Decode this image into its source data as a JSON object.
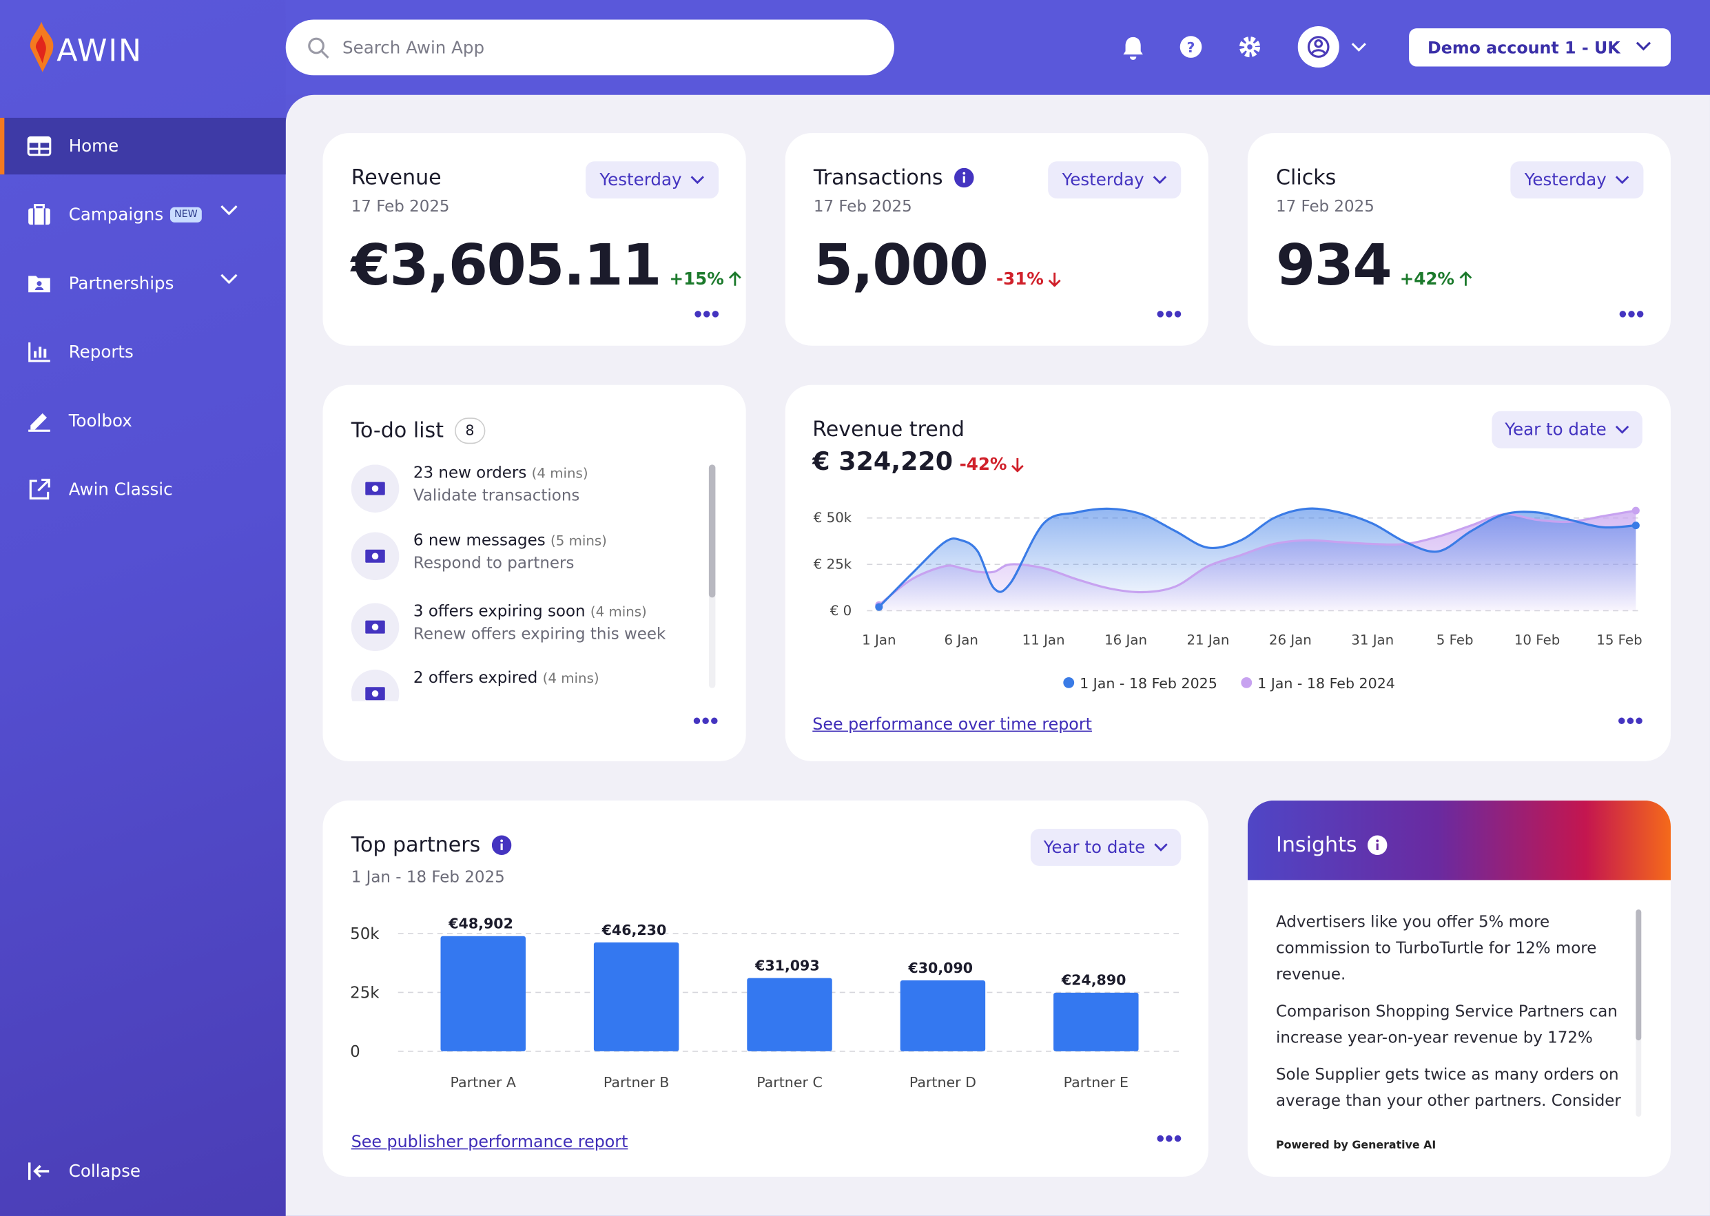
{
  "header": {
    "logo": "AWIN",
    "search_placeholder": "Search Awin App",
    "account": "Demo account 1 - UK"
  },
  "sidebar": {
    "items": [
      {
        "label": "Home"
      },
      {
        "label": "Campaigns",
        "badge": "NEW"
      },
      {
        "label": "Partnerships"
      },
      {
        "label": "Reports"
      },
      {
        "label": "Toolbox"
      },
      {
        "label": "Awin Classic"
      }
    ],
    "collapse": "Collapse"
  },
  "kpis": [
    {
      "title": "Revenue",
      "date": "17 Feb 2025",
      "period": "Yesterday",
      "value": "€3,605.11",
      "change": "+15%"
    },
    {
      "title": "Transactions",
      "date": "17 Feb 2025",
      "period": "Yesterday",
      "value": "5,000",
      "change": "-31%"
    },
    {
      "title": "Clicks",
      "date": "17 Feb 2025",
      "period": "Yesterday",
      "value": "934",
      "change": "+42%"
    }
  ],
  "todo": {
    "title": "To-do list",
    "count": 8,
    "items": [
      {
        "title": "23 new orders",
        "time": "(4 mins)",
        "subtitle": "Validate transactions"
      },
      {
        "title": "6 new messages",
        "time": "(5 mins)",
        "subtitle": "Respond to partners"
      },
      {
        "title": "3 offers expiring soon",
        "time": "(4 mins)",
        "subtitle": "Renew offers expiring this week"
      },
      {
        "title": "2 offers expired",
        "time": "(4 mins)"
      }
    ]
  },
  "revenue_trend": {
    "title": "Revenue trend",
    "total": "€ 324,220",
    "change": "-42%",
    "period": "Year to date",
    "link": "See performance over time report"
  },
  "top_partners": {
    "title": "Top partners",
    "date_range": "1 Jan - 18 Feb 2025",
    "period": "Year to date",
    "link": "See publisher performance report"
  },
  "insights": {
    "title": "Insights",
    "items": [
      "Advertisers like you offer 5% more commission to TurboTurtle for 12% more revenue.",
      "Comparison Shopping Service Partners can increase year-on-year revenue by 172%",
      "Sole Supplier gets twice as many orders on average than your other partners. Consider"
    ],
    "footer": "Powered by Generative AI"
  },
  "chart_data": [
    {
      "type": "line",
      "x": [
        1,
        3,
        5,
        6,
        7,
        8,
        9,
        11,
        13,
        15,
        17,
        19,
        21,
        23,
        25,
        27,
        29,
        31,
        33,
        35,
        37,
        39,
        41,
        43,
        45,
        47
      ],
      "xlim": [
        1,
        47
      ],
      "xticks": [
        {
          "value": 1,
          "label": "1 Jan"
        },
        {
          "value": 6,
          "label": "6 Jan"
        },
        {
          "value": 11,
          "label": "11 Jan"
        },
        {
          "value": 16,
          "label": "16 Jan"
        },
        {
          "value": 21,
          "label": "21 Jan"
        },
        {
          "value": 26,
          "label": "26 Jan"
        },
        {
          "value": 31,
          "label": "31 Jan"
        },
        {
          "value": 36,
          "label": "5 Feb"
        },
        {
          "value": 41,
          "label": "10 Feb"
        },
        {
          "value": 46,
          "label": "15 Feb"
        }
      ],
      "ylim": [
        0,
        50000
      ],
      "yticks": [
        {
          "value": 0,
          "label": "€ 0"
        },
        {
          "value": 25000,
          "label": "€ 25k"
        },
        {
          "value": 50000,
          "label": "€ 50k"
        }
      ],
      "grid": true,
      "series": [
        {
          "name": "1 Jan - 18 Feb 2025",
          "color": "#3a7be6",
          "values": [
            2000,
            20000,
            37000,
            38000,
            32000,
            12000,
            15000,
            47000,
            53000,
            55000,
            52000,
            43000,
            34000,
            38000,
            50000,
            55000,
            53000,
            47000,
            37000,
            32000,
            43000,
            52000,
            53000,
            49000,
            45000,
            46000
          ]
        },
        {
          "name": "1 Jan - 18 Feb 2024",
          "color": "#c7a2f0",
          "values": [
            3000,
            17000,
            24000,
            23000,
            21000,
            21000,
            25000,
            23000,
            17000,
            12000,
            10000,
            13000,
            24000,
            30000,
            36000,
            38000,
            37000,
            36000,
            36000,
            40000,
            46000,
            52000,
            49000,
            48000,
            51000,
            54000
          ]
        }
      ]
    },
    {
      "type": "bar",
      "categories": [
        "Partner A",
        "Partner B",
        "Partner C",
        "Partner D",
        "Partner E"
      ],
      "values": [
        48902,
        46230,
        31093,
        30090,
        24890
      ],
      "value_labels": [
        "€48,902",
        "€46,230",
        "€31,093",
        "€30,090",
        "€24,890"
      ],
      "color": "#3478f0",
      "ylim": [
        0,
        50000
      ],
      "yticks": [
        0,
        {
          "value": 25000,
          "label": "25k"
        },
        {
          "value": 50000,
          "label": "50k"
        }
      ],
      "grid": true
    }
  ]
}
